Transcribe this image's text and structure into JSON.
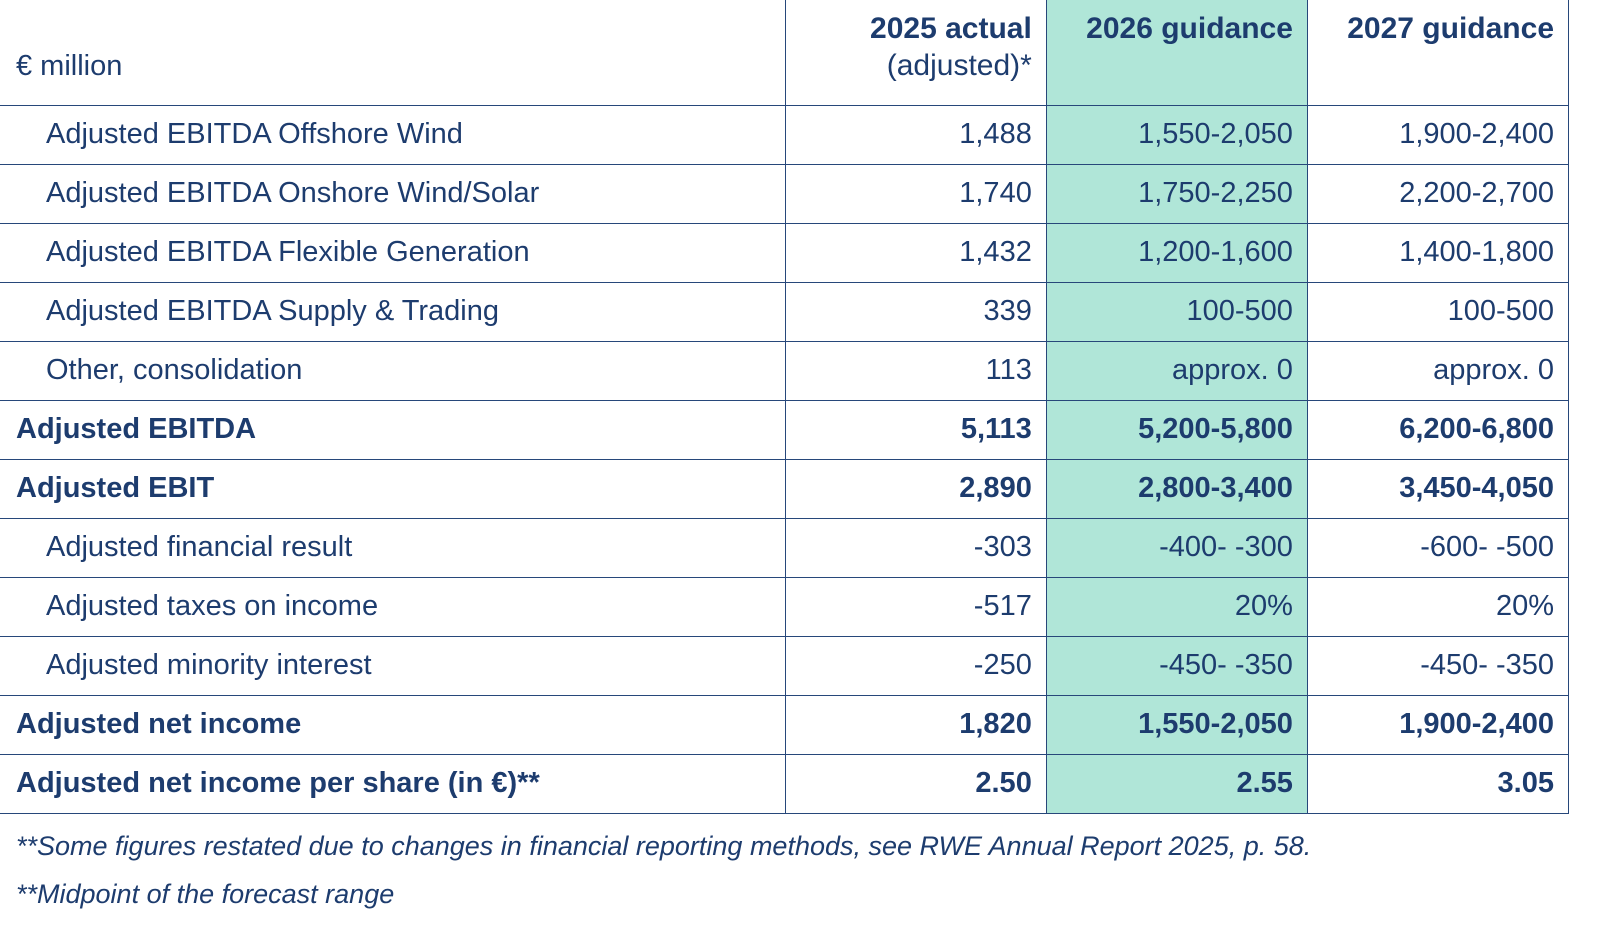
{
  "colors": {
    "text": "#1d3c6e",
    "border": "#27477a",
    "highlight": "#b0e6d8",
    "background": "#ffffff"
  },
  "table": {
    "unit_label": "€ million",
    "columns": [
      {
        "label": "2025 actual",
        "sublabel": "(adjusted)*",
        "highlight": false
      },
      {
        "label": "2026 guidance",
        "sublabel": "",
        "highlight": true
      },
      {
        "label": "2027 guidance",
        "sublabel": "",
        "highlight": false
      }
    ],
    "rows": [
      {
        "label": "Adjusted EBITDA Offshore Wind",
        "indent": true,
        "bold": false,
        "values": [
          "1,488",
          "1,550-2,050",
          "1,900-2,400"
        ]
      },
      {
        "label": "Adjusted EBITDA Onshore Wind/Solar",
        "indent": true,
        "bold": false,
        "values": [
          "1,740",
          "1,750-2,250",
          "2,200-2,700"
        ]
      },
      {
        "label": "Adjusted EBITDA Flexible Generation",
        "indent": true,
        "bold": false,
        "values": [
          "1,432",
          "1,200-1,600",
          "1,400-1,800"
        ]
      },
      {
        "label": "Adjusted EBITDA Supply & Trading",
        "indent": true,
        "bold": false,
        "values": [
          "339",
          "100-500",
          "100-500"
        ]
      },
      {
        "label": "Other, consolidation",
        "indent": true,
        "bold": false,
        "values": [
          "113",
          "approx. 0",
          "approx. 0"
        ]
      },
      {
        "label": "Adjusted EBITDA",
        "indent": false,
        "bold": true,
        "values": [
          "5,113",
          "5,200-5,800",
          "6,200-6,800"
        ]
      },
      {
        "label": "Adjusted EBIT",
        "indent": false,
        "bold": true,
        "values": [
          "2,890",
          "2,800-3,400",
          "3,450-4,050"
        ]
      },
      {
        "label": "Adjusted financial result",
        "indent": true,
        "bold": false,
        "values": [
          "-303",
          "-400- -300",
          "-600- -500"
        ]
      },
      {
        "label": "Adjusted taxes on income",
        "indent": true,
        "bold": false,
        "values": [
          "-517",
          "20%",
          "20%"
        ]
      },
      {
        "label": "Adjusted minority interest",
        "indent": true,
        "bold": false,
        "values": [
          "-250",
          "-450- -350",
          "-450- -350"
        ]
      },
      {
        "label": "Adjusted net income",
        "indent": false,
        "bold": true,
        "values": [
          "1,820",
          "1,550-2,050",
          "1,900-2,400"
        ]
      },
      {
        "label": "Adjusted net income per share (in €)**",
        "indent": false,
        "bold": true,
        "values": [
          "2.50",
          "2.55",
          "3.05"
        ]
      }
    ]
  },
  "footnotes": [
    "**Some figures restated due to changes in financial reporting methods, see RWE Annual Report 2025, p. 58.",
    "**Midpoint of the forecast range"
  ]
}
